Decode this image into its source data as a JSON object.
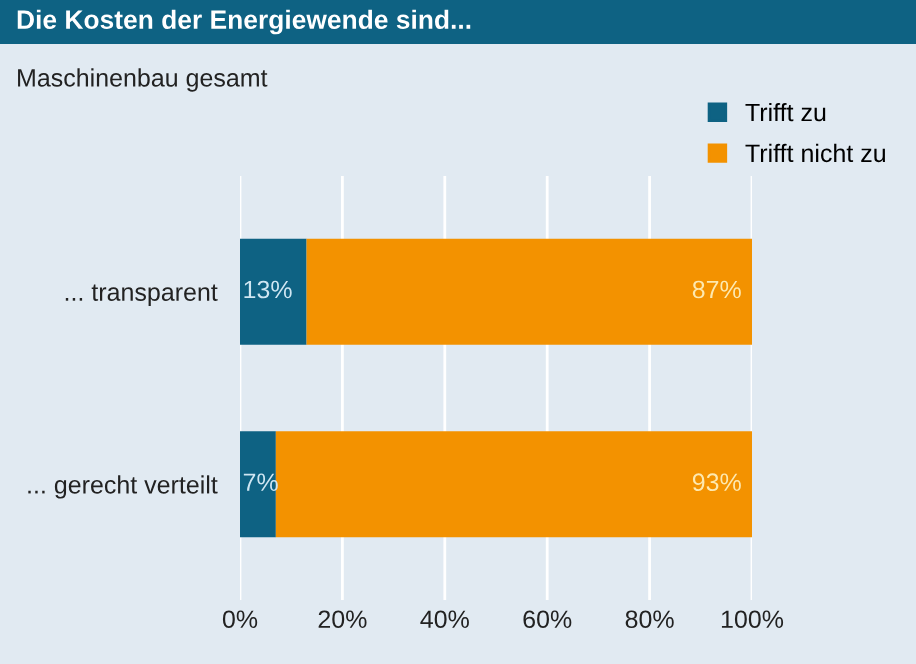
{
  "chart_data": {
    "type": "bar",
    "orientation": "horizontal",
    "stacked": true,
    "title": "Die Kosten der Energiewende sind...",
    "subtitle": "Maschinenbau gesamt",
    "categories": [
      "... transparent",
      "... gerecht verteilt"
    ],
    "series": [
      {
        "name": "Trifft zu",
        "color": "#0e6283",
        "values": [
          13,
          7
        ],
        "value_labels": [
          "13%",
          "7%"
        ]
      },
      {
        "name": "Trifft nicht zu",
        "color": "#f39200",
        "values": [
          87,
          93
        ],
        "value_labels": [
          "87%",
          "93%"
        ]
      }
    ],
    "xlim": [
      0,
      100
    ],
    "xticks": [
      {
        "value": 0,
        "label": "0%"
      },
      {
        "value": 20,
        "label": "20%"
      },
      {
        "value": 40,
        "label": "40%"
      },
      {
        "value": 60,
        "label": "60%"
      },
      {
        "value": 80,
        "label": "80%"
      },
      {
        "value": 100,
        "label": "100%"
      }
    ],
    "grid": "x",
    "legend": "top right"
  }
}
